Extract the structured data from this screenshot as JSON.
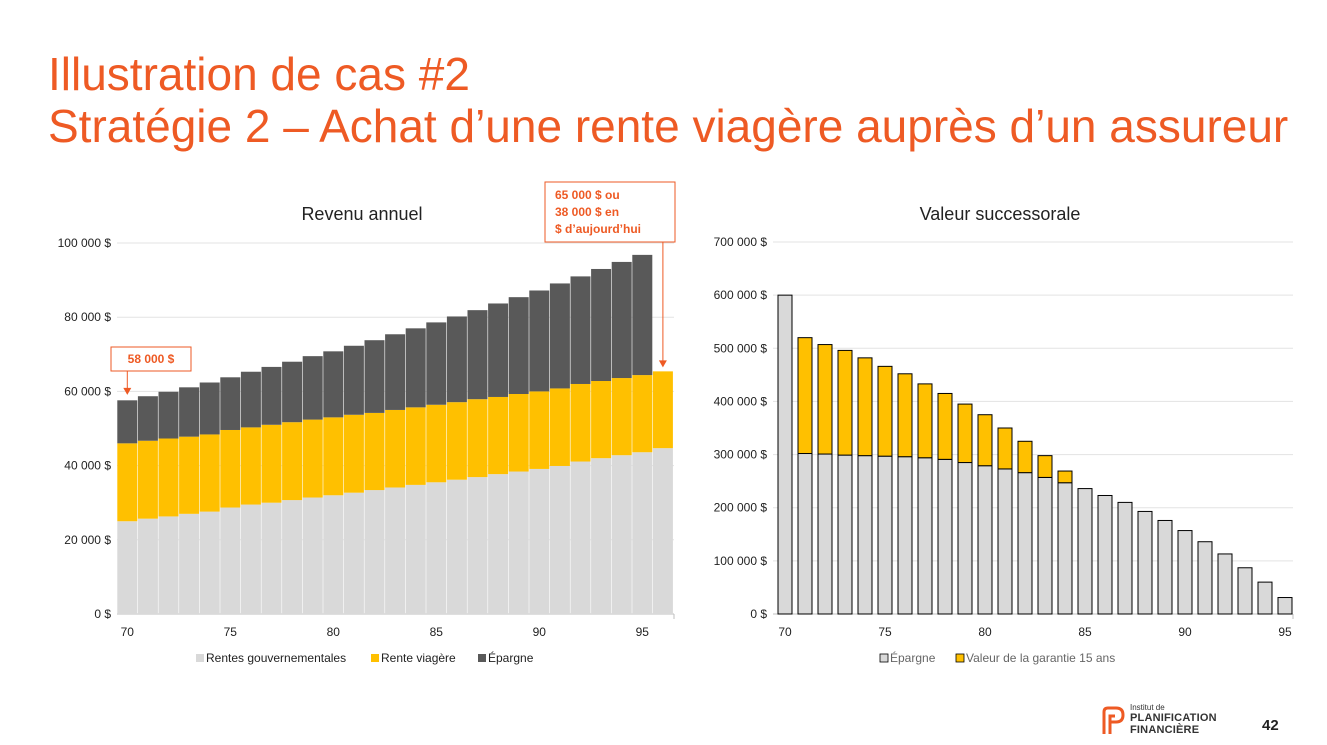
{
  "slide": {
    "title": "Illustration de cas #2",
    "subtitle": "Stratégie 2 – Achat d’une rente viagère auprès d’un assureur",
    "page_number": "42",
    "logo": {
      "line_small": "Institut de",
      "line1": "PLANIFICATION",
      "line2": "FINANCIÈRE"
    }
  },
  "colors": {
    "title": "#EE5A24",
    "annotation": "#EE5A24",
    "gray_light": "#D9D9D9",
    "yellow": "#FFC000",
    "dark": "#595959"
  },
  "chart_data": [
    {
      "type": "bar",
      "stacked": true,
      "title": "Revenu annuel",
      "x": [
        70,
        71,
        72,
        73,
        74,
        75,
        76,
        77,
        78,
        79,
        80,
        81,
        82,
        83,
        84,
        85,
        86,
        87,
        88,
        89,
        90,
        91,
        92,
        93,
        94,
        95,
        96
      ],
      "x_ticks": [
        "70",
        "75",
        "80",
        "85",
        "90",
        "95"
      ],
      "y_ticks": [
        "0 $",
        "20 000 $",
        "40 000 $",
        "60 000 $",
        "80 000 $",
        "100 000 $"
      ],
      "ylim": [
        0,
        100000
      ],
      "grid": true,
      "legend_position": "bottom",
      "series": [
        {
          "name": "Rentes gouvernementales",
          "color": "#D9D9D9",
          "values": [
            25000,
            25700,
            26300,
            27000,
            27600,
            28700,
            29500,
            30000,
            30700,
            31400,
            32000,
            32700,
            33400,
            34100,
            34800,
            35500,
            36200,
            36900,
            37700,
            38400,
            39100,
            39900,
            41100,
            42000,
            42800,
            43600,
            44700
          ]
        },
        {
          "name": "Rente viagère",
          "color": "#FFC000",
          "values": [
            21000,
            21000,
            21000,
            20800,
            20800,
            20900,
            20800,
            21000,
            21000,
            21000,
            21000,
            21000,
            20800,
            20900,
            20900,
            20900,
            20900,
            21000,
            20800,
            20900,
            20900,
            20900,
            20900,
            20800,
            20800,
            20800,
            20700
          ]
        },
        {
          "name": "Épargne",
          "color": "#595959",
          "values": [
            11600,
            12000,
            12600,
            13300,
            14000,
            14200,
            15000,
            15600,
            16300,
            17100,
            17800,
            18600,
            19600,
            20400,
            21300,
            22200,
            23100,
            24000,
            25200,
            26100,
            27200,
            28300,
            29000,
            30200,
            31300,
            32400,
            0
          ]
        }
      ],
      "annotations": [
        {
          "text": "58 000 $",
          "x": 70,
          "y": 58000
        },
        {
          "lines": [
            "65 000 $ ou",
            "38 000 $ en",
            "$ d’aujourd’hui"
          ],
          "x": 96,
          "y": 65400
        }
      ]
    },
    {
      "type": "bar",
      "stacked": true,
      "title": "Valeur successorale",
      "x": [
        70,
        71,
        72,
        73,
        74,
        75,
        76,
        77,
        78,
        79,
        80,
        81,
        82,
        83,
        84,
        85,
        86,
        87,
        88,
        89,
        90,
        91,
        92,
        93,
        94,
        95
      ],
      "x_ticks": [
        "70",
        "75",
        "80",
        "85",
        "90",
        "95"
      ],
      "y_ticks": [
        "0 $",
        "100 000 $",
        "200 000 $",
        "300 000 $",
        "400 000 $",
        "500 000 $",
        "600 000 $",
        "700 000 $"
      ],
      "ylim": [
        0,
        700000
      ],
      "grid": true,
      "legend_position": "bottom",
      "series": [
        {
          "name": "Épargne",
          "color": "#D9D9D9",
          "values": [
            600000,
            302000,
            301000,
            299000,
            298000,
            297000,
            296000,
            294000,
            291000,
            285000,
            279000,
            273000,
            266000,
            257000,
            247000,
            236000,
            223000,
            210000,
            193000,
            176000,
            157000,
            136000,
            113000,
            87000,
            60000,
            31000
          ]
        },
        {
          "name": "Valeur de la garantie 15 ans",
          "color": "#FFC000",
          "values": [
            0,
            218000,
            206000,
            197000,
            184000,
            169000,
            156000,
            139000,
            124000,
            110000,
            96000,
            77000,
            59000,
            41000,
            22000,
            0,
            0,
            0,
            0,
            0,
            0,
            0,
            0,
            0,
            0,
            0
          ]
        }
      ]
    }
  ]
}
